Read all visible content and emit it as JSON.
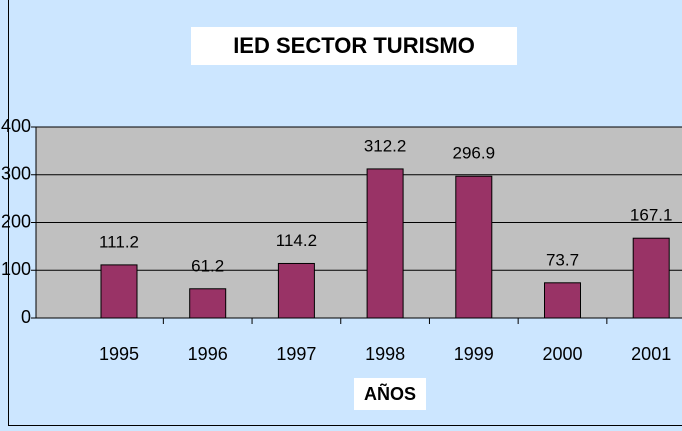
{
  "chart_data": {
    "type": "bar",
    "title": "IED SECTOR TURISMO",
    "x_label": "AÑOS",
    "categories": [
      "1995",
      "1996",
      "1997",
      "1998",
      "1999",
      "2000",
      "2001"
    ],
    "values": [
      111.2,
      61.2,
      114.2,
      312.2,
      296.9,
      73.7,
      167.1
    ],
    "color": "#993366",
    "ylim": [
      0,
      400
    ],
    "yticks": [
      0,
      100,
      200,
      300,
      400
    ],
    "grid": true
  }
}
